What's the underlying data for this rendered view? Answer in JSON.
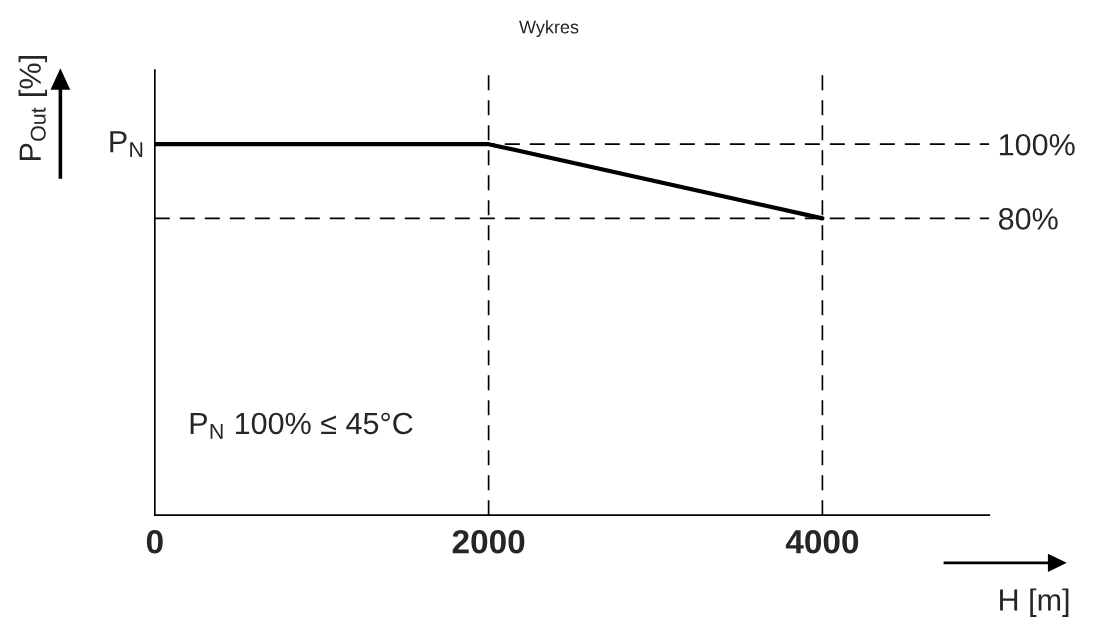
{
  "chart_data": {
    "type": "line",
    "title": "Wykres",
    "xlabel": "H [m]",
    "ylabel": "P$_{Out}$ [%]",
    "x": [
      0,
      2000,
      4000
    ],
    "series": [
      {
        "color": "#000000",
        "values": [
          100,
          100,
          80
        ]
      }
    ],
    "ylim": [
      0,
      120
    ],
    "yticks": [
      {
        "value": 100,
        "label": "100%"
      },
      {
        "value": 80,
        "label": "80%"
      }
    ],
    "xlim": [
      0,
      5000
    ],
    "xticks": [
      0,
      2000,
      4000
    ],
    "ref_lines": [
      {
        "axis": "y",
        "value": 100,
        "line_style": "dashed",
        "color": "#000000"
      },
      {
        "axis": "y",
        "value": 80,
        "line_style": "dashed",
        "color": "#000000"
      },
      {
        "axis": "x",
        "value": 2000,
        "line_style": "dashed",
        "color": "#000000"
      },
      {
        "axis": "x",
        "value": 4000,
        "line_style": "dashed",
        "color": "#000000"
      }
    ],
    "annotations": [
      "P$_{N}$",
      "P$_{N}$ 100% ≤ 45°C"
    ],
    "grid": false,
    "legend": false,
    "marker": "none",
    "line_style": "solid"
  }
}
